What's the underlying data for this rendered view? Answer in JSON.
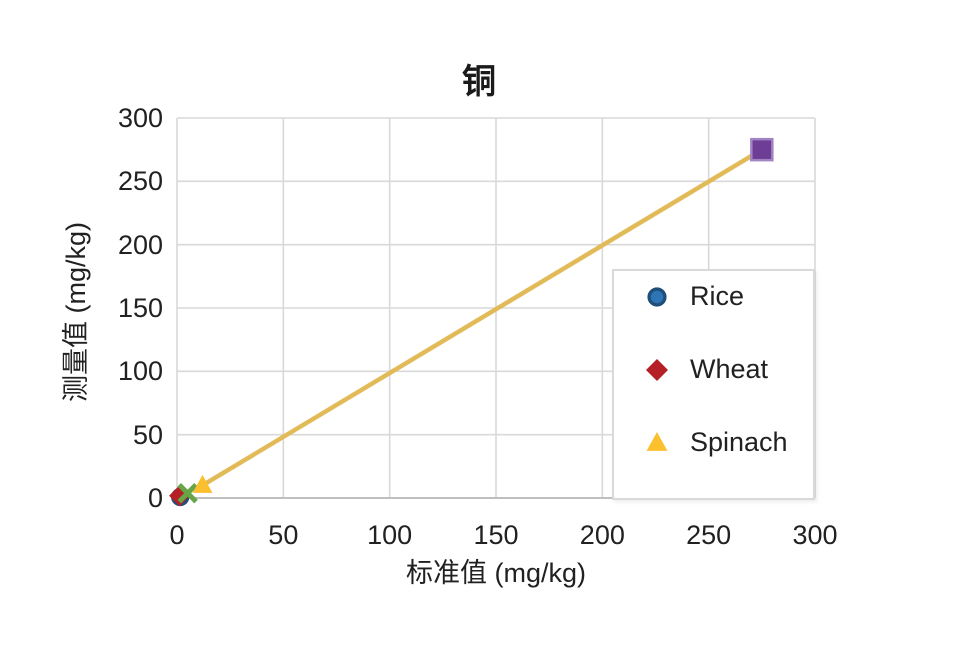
{
  "chart": {
    "title": "铜",
    "x_axis": {
      "label": "标准值 (mg/kg)",
      "ticks": [
        "0",
        "50",
        "100",
        "150",
        "200",
        "250",
        "300"
      ]
    },
    "y_axis": {
      "label": "测量值 (mg/kg)",
      "ticks": [
        "0",
        "50",
        "100",
        "150",
        "200",
        "250",
        "300"
      ]
    },
    "legend": [
      {
        "label": "Rice",
        "marker": "circle",
        "color": "#2E75B6",
        "edge_color": "#1F4E79"
      },
      {
        "label": "Wheat",
        "marker": "diamond",
        "color": "#B42025",
        "edge_color": "#B42025"
      },
      {
        "label": "Spinach",
        "marker": "triangle",
        "color": "#FCBF2D",
        "edge_color": "#FCBF2D"
      }
    ]
  },
  "chart_data": {
    "type": "scatter",
    "title": "铜",
    "xlabel": "标准值 (mg/kg)",
    "ylabel": "测量值 (mg/kg)",
    "xlim": [
      0,
      300
    ],
    "ylim": [
      0,
      300
    ],
    "x_ticks": [
      0,
      50,
      100,
      150,
      200,
      250,
      300
    ],
    "y_ticks": [
      0,
      50,
      100,
      150,
      200,
      250,
      300
    ],
    "grid": true,
    "legend_position": "inside-right",
    "series": [
      {
        "name": "Rice",
        "marker": "circle",
        "fill": "#2E75B6",
        "edge": "#1F4E79",
        "in_legend": true,
        "points": [
          [
            1.5,
            0.8
          ]
        ]
      },
      {
        "name": "Wheat",
        "marker": "diamond",
        "fill": "#B42025",
        "edge": "#B42025",
        "in_legend": true,
        "points": [
          [
            1.2,
            1.8
          ]
        ]
      },
      {
        "name": "unlabeled-green-x",
        "marker": "x",
        "fill": "#67A546",
        "edge": "#67A546",
        "in_legend": false,
        "points": [
          [
            5,
            3.8
          ]
        ]
      },
      {
        "name": "Spinach",
        "marker": "triangle",
        "fill": "#FCBF2D",
        "edge": "#FCBF2D",
        "in_legend": true,
        "points": [
          [
            12,
            10
          ]
        ]
      },
      {
        "name": "unlabeled-purple-square",
        "marker": "square",
        "fill": "#6E3D96",
        "edge": "#A184C4",
        "in_legend": false,
        "points": [
          [
            275,
            275
          ]
        ]
      }
    ],
    "trend_line": {
      "from": [
        12,
        10
      ],
      "to": [
        275,
        275
      ],
      "color": "#E2BB58",
      "width": 4.5
    },
    "colors": {
      "grid": "#D9D9D9",
      "axis": "#BFBFBF",
      "text": "#212121"
    }
  }
}
